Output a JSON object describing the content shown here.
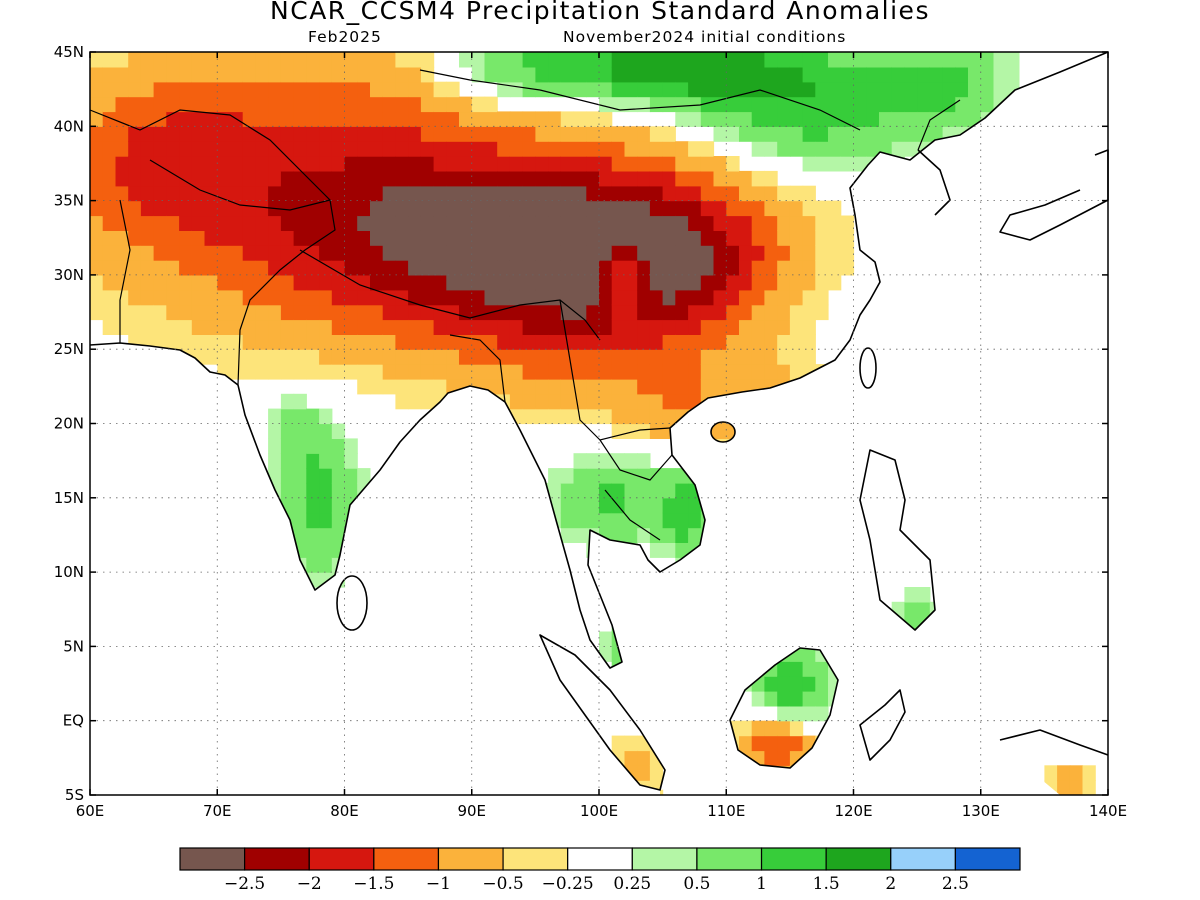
{
  "header": {
    "title": "NCAR_CCSM4 Precipitation Standard Anomalies",
    "valid_month": "Feb2025",
    "init_text": "November2024 initial conditions"
  },
  "map": {
    "lon_range": [
      60,
      140
    ],
    "lat_range": [
      -5,
      45
    ],
    "x_ticks": [
      {
        "value": 60,
        "label": "60E"
      },
      {
        "value": 70,
        "label": "70E"
      },
      {
        "value": 80,
        "label": "80E"
      },
      {
        "value": 90,
        "label": "90E"
      },
      {
        "value": 100,
        "label": "100E"
      },
      {
        "value": 110,
        "label": "110E"
      },
      {
        "value": 120,
        "label": "120E"
      },
      {
        "value": 130,
        "label": "130E"
      },
      {
        "value": 140,
        "label": "140E"
      }
    ],
    "y_ticks": [
      {
        "value": 45,
        "label": "45N"
      },
      {
        "value": 40,
        "label": "40N"
      },
      {
        "value": 35,
        "label": "35N"
      },
      {
        "value": 30,
        "label": "30N"
      },
      {
        "value": 25,
        "label": "25N"
      },
      {
        "value": 20,
        "label": "20N"
      },
      {
        "value": 15,
        "label": "15N"
      },
      {
        "value": 10,
        "label": "10N"
      },
      {
        "value": 5,
        "label": "5N"
      },
      {
        "value": 0,
        "label": "EQ"
      },
      {
        "value": -5,
        "label": "5S"
      }
    ],
    "grid": true
  },
  "colorbar": {
    "colors": [
      "#76564e",
      "#a00000",
      "#d6170f",
      "#f4600f",
      "#fbb23b",
      "#fde47a",
      "#ffffff",
      "#b4f6a6",
      "#78e86a",
      "#37cd3a",
      "#1ea61e",
      "#97d0fa",
      "#1463d2"
    ],
    "labels": [
      "-2.5",
      "-2",
      "-1.5",
      "-1",
      "-0.5",
      "-0.25",
      "0.25",
      "0.5",
      "1",
      "1.5",
      "2",
      "2.5"
    ]
  },
  "field": {
    "blobs": [
      {
        "lon": 78,
        "lat": 36,
        "rlon": 18,
        "rlat": 9,
        "a": -1.8
      },
      {
        "lon": 92,
        "lat": 31,
        "rlon": 14,
        "rlat": 6,
        "a": -1.6
      },
      {
        "lon": 103,
        "lat": 34,
        "rlon": 12,
        "rlat": 5,
        "a": -1.4
      },
      {
        "lon": 100,
        "lat": 27,
        "rlon": 10,
        "rlat": 6,
        "a": -1.1
      },
      {
        "lon": 108,
        "lat": 30,
        "rlon": 7,
        "rlat": 4,
        "a": -1.0
      },
      {
        "lon": 65,
        "lat": 38,
        "rlon": 7,
        "rlat": 5,
        "a": -0.8
      },
      {
        "lon": 88,
        "lat": 34,
        "rlon": 4,
        "rlat": 2,
        "a": -1.2
      },
      {
        "lon": 107,
        "lat": 21,
        "rlon": 5,
        "rlat": 3,
        "a": -0.6
      },
      {
        "lon": 114,
        "lat": 22,
        "rlon": 6,
        "rlat": 3,
        "a": -0.4
      },
      {
        "lon": 114,
        "lat": -1.5,
        "rlon": 3,
        "rlat": 2,
        "a": -1.6
      },
      {
        "lon": 103,
        "lat": -3,
        "rlon": 2,
        "rlat": 2,
        "a": -0.8
      },
      {
        "lon": 137,
        "lat": -4,
        "rlon": 2,
        "rlat": 1.5,
        "a": -0.7
      },
      {
        "lon": 116,
        "lat": 41,
        "rlon": 9,
        "rlat": 4,
        "a": 1.3
      },
      {
        "lon": 105,
        "lat": 44,
        "rlon": 11,
        "rlat": 2.5,
        "a": 1.8
      },
      {
        "lon": 127,
        "lat": 43,
        "rlon": 5,
        "rlat": 3,
        "a": 1.0
      },
      {
        "lon": 93,
        "lat": 44,
        "rlon": 6,
        "rlat": 3,
        "a": 0.8
      },
      {
        "lon": 102,
        "lat": 30,
        "rlon": 1.8,
        "rlat": 2.5,
        "a": 1.7
      },
      {
        "lon": 78,
        "lat": 15,
        "rlon": 3,
        "rlat": 5,
        "a": 1.3
      },
      {
        "lon": 76,
        "lat": 20,
        "rlon": 2,
        "rlat": 2,
        "a": 0.6
      },
      {
        "lon": 101,
        "lat": 15,
        "rlon": 5,
        "rlat": 3,
        "a": 1.1
      },
      {
        "lon": 107,
        "lat": 14,
        "rlon": 2,
        "rlat": 3,
        "a": 1.2
      },
      {
        "lon": 115,
        "lat": 2.5,
        "rlon": 3,
        "rlat": 3,
        "a": 1.4
      },
      {
        "lon": 102,
        "lat": 5,
        "rlon": 1.5,
        "rlat": 2,
        "a": 1.0
      },
      {
        "lon": 125,
        "lat": 7,
        "rlon": 1.5,
        "rlat": 1.5,
        "a": 0.9
      }
    ]
  }
}
